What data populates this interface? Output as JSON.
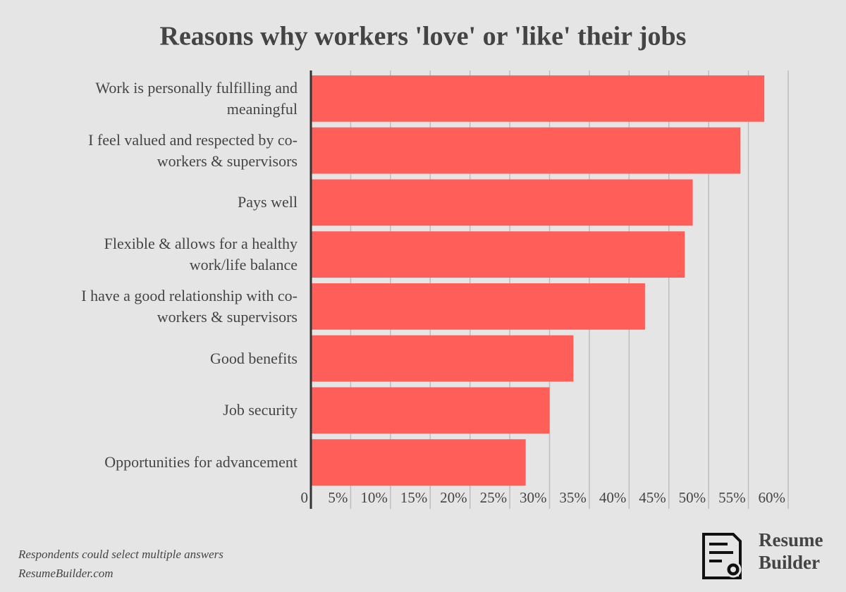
{
  "chart_data": {
    "type": "barh",
    "title": "Reasons why workers 'love' or 'like' their jobs",
    "categories": [
      "Work is personally fulfilling and meaningful",
      "I feel valued and respected by co-workers & supervisors",
      "Pays well",
      "Flexible & allows for a healthy work/life balance",
      "I have a good relationship with co-workers & supervisors",
      "Good benefits",
      "Job security",
      "Opportunities for advancement"
    ],
    "values": [
      57,
      54,
      48,
      47,
      42,
      33,
      30,
      27
    ],
    "color": "#ff5f58",
    "xlim": [
      0,
      60
    ],
    "xticks": [
      0,
      {
        "value": 5,
        "label": "5%"
      },
      {
        "value": 10,
        "label": "10%"
      },
      {
        "value": 15,
        "label": "15%"
      },
      {
        "value": 20,
        "label": "20%"
      },
      {
        "value": 25,
        "label": "25%"
      },
      {
        "value": 30,
        "label": "30%"
      },
      {
        "value": 35,
        "label": "35%"
      },
      {
        "value": 40,
        "label": "40%"
      },
      {
        "value": 45,
        "label": "45%"
      },
      {
        "value": 50,
        "label": "50%"
      },
      {
        "value": 55,
        "label": "55%"
      },
      {
        "value": 60,
        "label": "60%"
      }
    ],
    "grid": true
  },
  "footer": {
    "note": "Respondents could select multiple answers",
    "source": "ResumeBuilder.com"
  },
  "logo": {
    "lines": [
      "Resume",
      "Builder"
    ]
  }
}
